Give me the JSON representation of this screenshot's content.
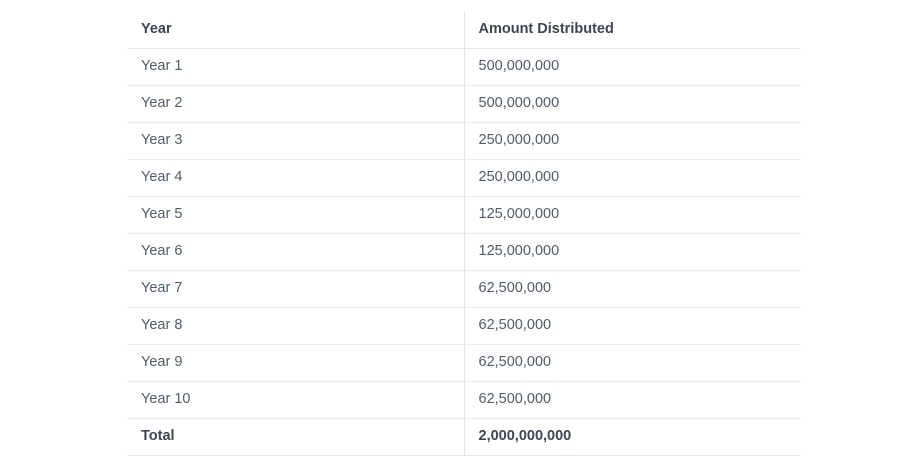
{
  "chart_data": {
    "type": "table",
    "columns": [
      "Year",
      "Amount Distributed"
    ],
    "rows": [
      {
        "year": "Year 1",
        "amount": "500,000,000",
        "amount_value": 500000000
      },
      {
        "year": "Year 2",
        "amount": "500,000,000",
        "amount_value": 500000000
      },
      {
        "year": "Year 3",
        "amount": "250,000,000",
        "amount_value": 250000000
      },
      {
        "year": "Year 4",
        "amount": "250,000,000",
        "amount_value": 250000000
      },
      {
        "year": "Year 5",
        "amount": "125,000,000",
        "amount_value": 125000000
      },
      {
        "year": "Year 6",
        "amount": "125,000,000",
        "amount_value": 125000000
      },
      {
        "year": "Year 7",
        "amount": "62,500,000",
        "amount_value": 62500000
      },
      {
        "year": "Year 8",
        "amount": "62,500,000",
        "amount_value": 62500000
      },
      {
        "year": "Year 9",
        "amount": "62,500,000",
        "amount_value": 62500000
      },
      {
        "year": "Year 10",
        "amount": "62,500,000",
        "amount_value": 62500000
      }
    ],
    "total": {
      "label": "Total",
      "amount": "2,000,000,000",
      "amount_value": 2000000000
    }
  },
  "colors": {
    "background": "#ffffff",
    "header_text": "#3d4653",
    "body_text": "#515b67",
    "row_border": "#e9ebee",
    "column_divider": "#e1e4e9"
  }
}
